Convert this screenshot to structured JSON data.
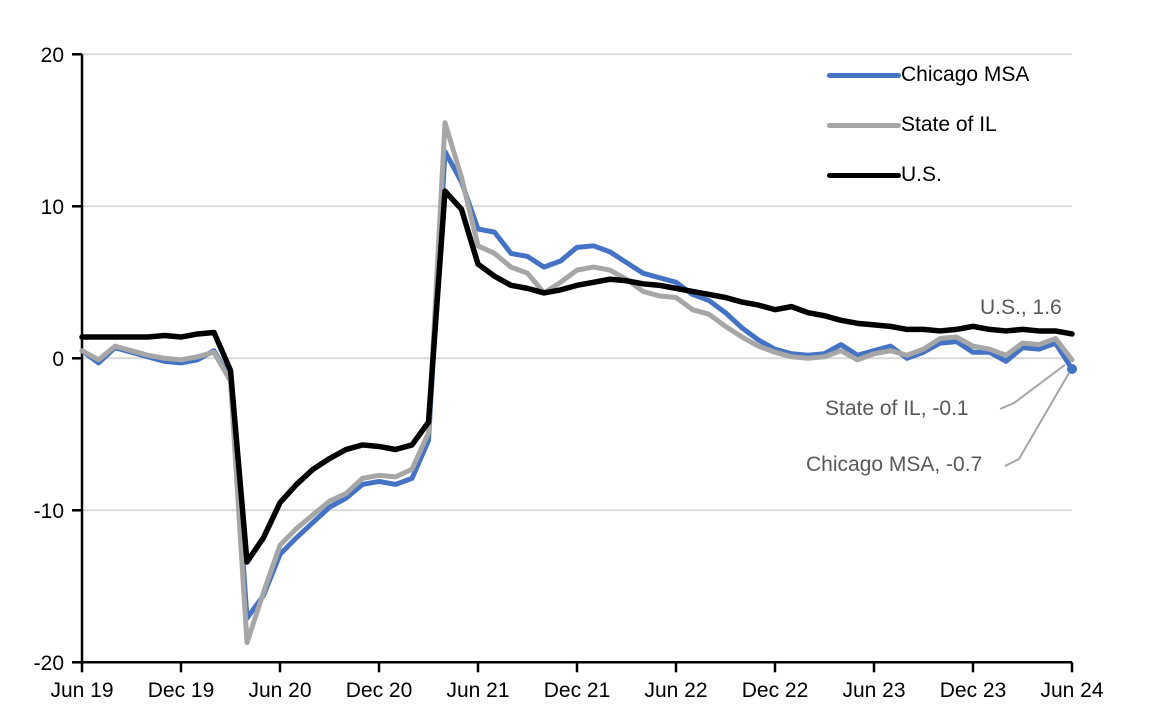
{
  "figure": {
    "background": "#ffffff"
  },
  "legend": {
    "items": [
      {
        "label": "Chicago MSA",
        "color": "#4472C4"
      },
      {
        "label": "State of IL",
        "color": "#A6A6A6"
      },
      {
        "label": "U.S.",
        "color": "#000000"
      }
    ]
  },
  "annotations": [
    {
      "series": "U.S.",
      "text": "U.S., 1.6",
      "value": 1.6
    },
    {
      "series": "State of IL",
      "text": "State of IL, -0.1",
      "value": -0.1
    },
    {
      "series": "Chicago MSA",
      "text": "Chicago MSA, -0.7",
      "value": -0.7
    }
  ],
  "chart_data": {
    "type": "line",
    "title": "",
    "xlabel": "",
    "ylabel": "",
    "ylim": [
      -20,
      20
    ],
    "grid": "horizontal",
    "y_gridline_values": [
      20,
      10,
      0,
      -10
    ],
    "y_tick_labels": [
      "20",
      "10",
      "0",
      "-10",
      "-20"
    ],
    "y_tick_values": [
      20,
      10,
      0,
      -10,
      -20
    ],
    "x_tick_labels": [
      "Jun 19",
      "Dec 19",
      "Jun 20",
      "Dec 20",
      "Jun 21",
      "Dec 21",
      "Jun 22",
      "Dec 22",
      "Jun 23",
      "Dec 23",
      "Jun 24"
    ],
    "legend_position": "top-right-inside",
    "x_monthly": [
      "Jun 19",
      "Jul 19",
      "Aug 19",
      "Sep 19",
      "Oct 19",
      "Nov 19",
      "Dec 19",
      "Jan 20",
      "Feb 20",
      "Mar 20",
      "Apr 20",
      "May 20",
      "Jun 20",
      "Jul 20",
      "Aug 20",
      "Sep 20",
      "Oct 20",
      "Nov 20",
      "Dec 20",
      "Jan 21",
      "Feb 21",
      "Mar 21",
      "Apr 21",
      "May 21",
      "Jun 21",
      "Jul 21",
      "Aug 21",
      "Sep 21",
      "Oct 21",
      "Nov 21",
      "Dec 21",
      "Jan 22",
      "Feb 22",
      "Mar 22",
      "Apr 22",
      "May 22",
      "Jun 22",
      "Jul 22",
      "Aug 22",
      "Sep 22",
      "Oct 22",
      "Nov 22",
      "Dec 22",
      "Jan 23",
      "Feb 23",
      "Mar 23",
      "Apr 23",
      "May 23",
      "Jun 23",
      "Jul 23",
      "Aug 23",
      "Sep 23",
      "Oct 23",
      "Nov 23",
      "Dec 23",
      "Jan 24",
      "Feb 24",
      "Mar 24",
      "Apr 24",
      "May 24",
      "Jun 24"
    ],
    "series": [
      {
        "name": "Chicago MSA",
        "color": "#4472C4",
        "width": 5,
        "values": [
          0.5,
          -0.3,
          0.7,
          0.4,
          0.1,
          -0.2,
          -0.3,
          -0.1,
          0.5,
          -1.4,
          -17.1,
          -15.6,
          -12.9,
          -11.8,
          -10.8,
          -9.8,
          -9.2,
          -8.3,
          -8.1,
          -8.3,
          -7.9,
          -5.4,
          13.6,
          11.6,
          8.5,
          8.3,
          6.9,
          6.7,
          6.0,
          6.4,
          7.3,
          7.4,
          7.0,
          6.3,
          5.6,
          5.3,
          5.0,
          4.2,
          3.8,
          3.0,
          2.0,
          1.2,
          0.6,
          0.3,
          0.2,
          0.3,
          0.9,
          0.2,
          0.5,
          0.8,
          0.0,
          0.4,
          1.0,
          1.1,
          0.4,
          0.4,
          -0.2,
          0.7,
          0.6,
          1.0,
          -0.7
        ]
      },
      {
        "name": "State of IL",
        "color": "#A6A6A6",
        "width": 5,
        "values": [
          0.5,
          -0.1,
          0.8,
          0.5,
          0.2,
          0.0,
          -0.1,
          0.1,
          0.4,
          -1.5,
          -18.7,
          -15.4,
          -12.3,
          -11.2,
          -10.3,
          -9.4,
          -8.9,
          -7.9,
          -7.7,
          -7.8,
          -7.3,
          -4.9,
          15.5,
          11.9,
          7.4,
          6.9,
          6.0,
          5.6,
          4.3,
          5.0,
          5.8,
          6.0,
          5.8,
          5.2,
          4.4,
          4.1,
          4.0,
          3.2,
          2.9,
          2.1,
          1.4,
          0.8,
          0.4,
          0.1,
          0.0,
          0.1,
          0.5,
          -0.1,
          0.3,
          0.5,
          0.2,
          0.6,
          1.3,
          1.4,
          0.8,
          0.6,
          0.2,
          1.0,
          0.9,
          1.3,
          -0.1
        ]
      },
      {
        "name": "U.S.",
        "color": "#000000",
        "width": 5.5,
        "values": [
          1.4,
          1.4,
          1.4,
          1.4,
          1.4,
          1.5,
          1.4,
          1.6,
          1.7,
          -0.8,
          -13.4,
          -11.8,
          -9.5,
          -8.3,
          -7.3,
          -6.6,
          -6.0,
          -5.7,
          -5.8,
          -6.0,
          -5.7,
          -4.2,
          11.0,
          9.8,
          6.2,
          5.4,
          4.8,
          4.6,
          4.3,
          4.5,
          4.8,
          5.0,
          5.2,
          5.1,
          4.9,
          4.8,
          4.6,
          4.4,
          4.2,
          4.0,
          3.7,
          3.5,
          3.2,
          3.4,
          3.0,
          2.8,
          2.5,
          2.3,
          2.2,
          2.1,
          1.9,
          1.9,
          1.8,
          1.9,
          2.1,
          1.9,
          1.8,
          1.9,
          1.8,
          1.8,
          1.6
        ]
      }
    ],
    "end_marker": {
      "series": "Chicago MSA",
      "shape": "circle",
      "color": "#4472C4"
    },
    "colors": {
      "gridline": "#D9D9D9",
      "axis": "#000000",
      "tick_label": "#000000",
      "annotation_text": "#595959",
      "leader_line": "#A6A6A6"
    }
  }
}
